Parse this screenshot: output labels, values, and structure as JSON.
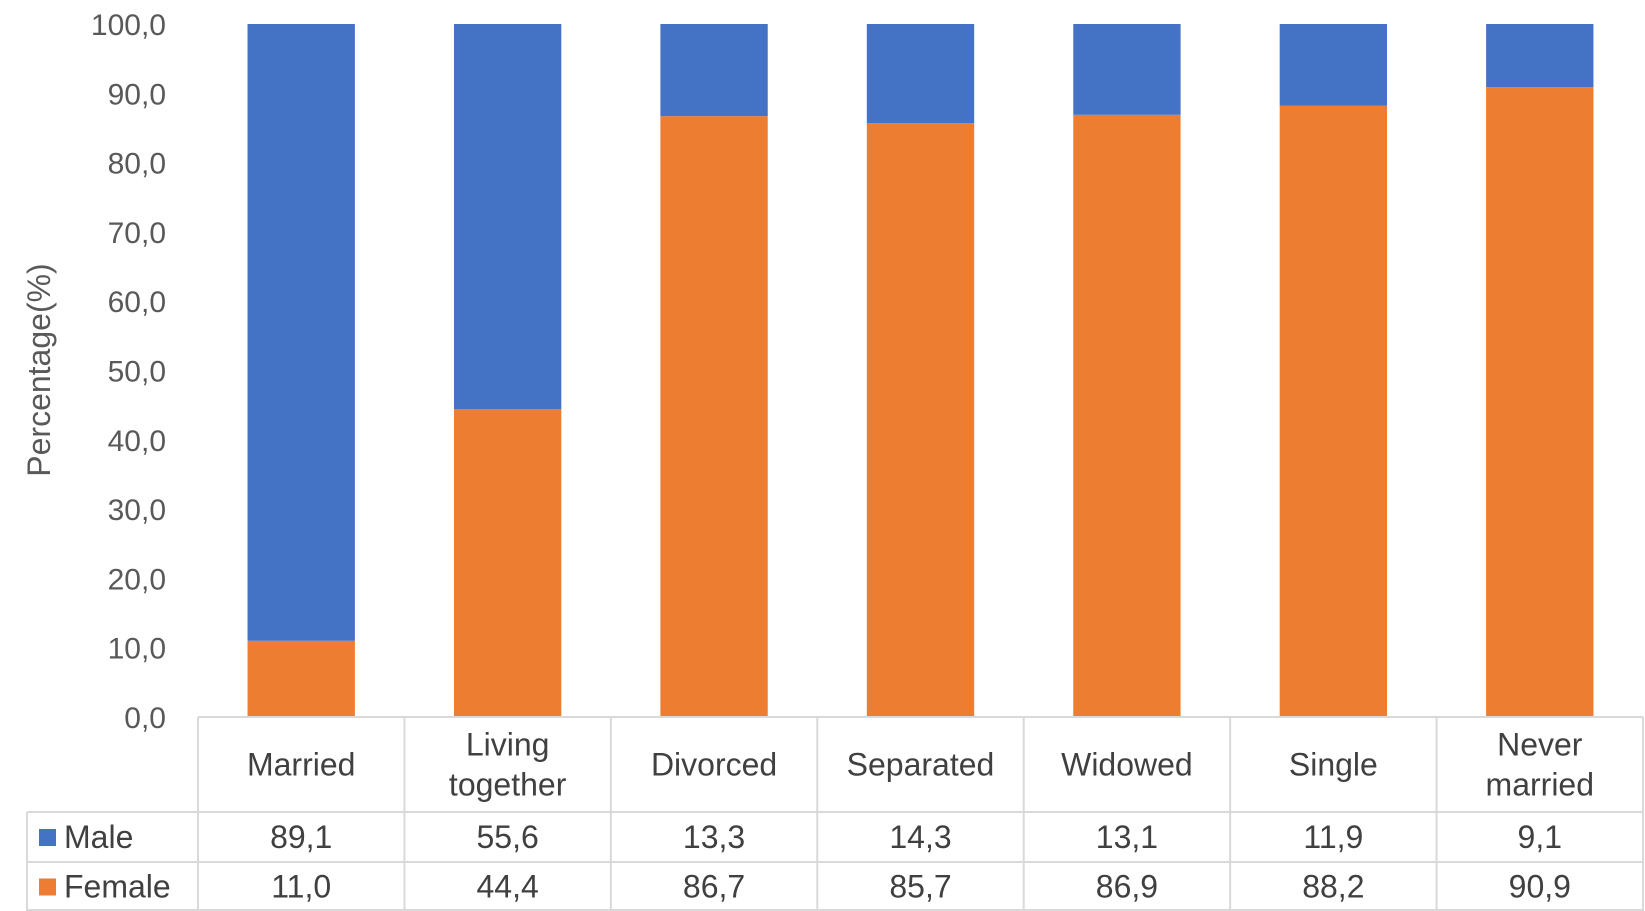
{
  "chart_data": {
    "type": "bar",
    "stacked": true,
    "ylabel": "Percentage(%)",
    "ylim": [
      0,
      100
    ],
    "yticks": [
      "0,0",
      "10,0",
      "20,0",
      "30,0",
      "40,0",
      "50,0",
      "60,0",
      "70,0",
      "80,0",
      "90,0",
      "100,0"
    ],
    "categories": [
      [
        "Married"
      ],
      [
        "Living",
        "together"
      ],
      [
        "Divorced"
      ],
      [
        "Separated"
      ],
      [
        "Widowed"
      ],
      [
        "Single"
      ],
      [
        "Never",
        "married"
      ]
    ],
    "series": [
      {
        "name": "Female",
        "color": "#ED7D31",
        "values": [
          11.0,
          44.4,
          86.7,
          85.7,
          86.9,
          88.2,
          90.9
        ],
        "labels": [
          "11,0",
          "44,4",
          "86,7",
          "85,7",
          "86,9",
          "88,2",
          "90,9"
        ]
      },
      {
        "name": "Male",
        "color": "#4472C4",
        "values": [
          89.1,
          55.6,
          13.3,
          14.3,
          13.1,
          11.9,
          9.1
        ],
        "labels": [
          "89,1",
          "55,6",
          "13,3",
          "14,3",
          "13,1",
          "11,9",
          "9,1"
        ]
      }
    ],
    "table_row_order": [
      "Male",
      "Female"
    ],
    "grid": false,
    "legend": "data-table"
  }
}
